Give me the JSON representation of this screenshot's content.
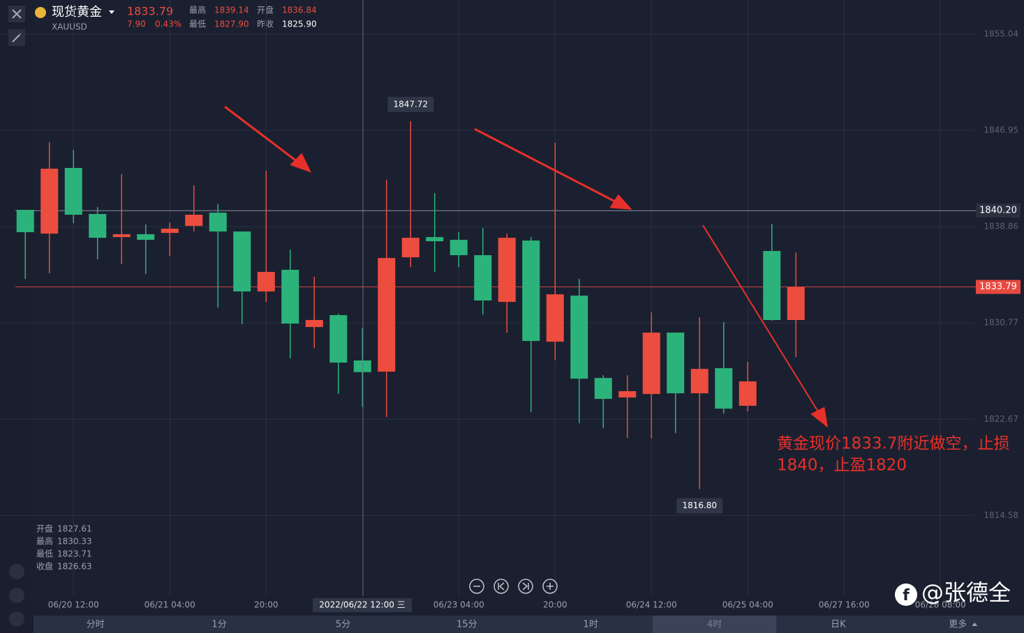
{
  "header": {
    "name": "现货黄金",
    "symbol": "XAUUSD",
    "price": "1833.79",
    "change": "7.90",
    "change_pct": "0.43%",
    "stats": [
      {
        "label": "最高",
        "value": "1839.14"
      },
      {
        "label": "开盘",
        "value": "1836.84"
      },
      {
        "label": "最低",
        "value": "1827.90"
      },
      {
        "label": "昨收",
        "value": "1825.90"
      }
    ]
  },
  "hover_info": [
    {
      "label": "开盘",
      "value": "1827.61"
    },
    {
      "label": "最高",
      "value": "1830.33"
    },
    {
      "label": "最低",
      "value": "1823.71"
    },
    {
      "label": "收盘",
      "value": "1826.63"
    }
  ],
  "crosshair_label": "2022/06/22 12:00 三",
  "tabs": [
    "分时",
    "1分",
    "5分",
    "15分",
    "1时",
    "4时",
    "日K",
    "更多"
  ],
  "active_tab": "4时",
  "note": [
    "黄金现价1833.7附近做空，止损",
    "1840，止盈1820"
  ],
  "watermark": "@张德全",
  "chart_data": {
    "type": "candlestick",
    "categories": [
      null,
      null,
      "06/20 12:00",
      null,
      null,
      null,
      "06/21 04:00",
      null,
      null,
      null,
      "20:00",
      null,
      null,
      null,
      null,
      null,
      null,
      null,
      "06/23 04:00",
      null,
      null,
      null,
      "20:00",
      null,
      null,
      null,
      "06/24 12:00",
      null,
      null,
      null,
      "06/25 04:00",
      null,
      null,
      null,
      "06/27 16:00",
      null,
      null,
      null,
      "06/28 08:00",
      null
    ],
    "open": [
      1840.27,
      1838.27,
      1843.79,
      1839.92,
      1837.98,
      1838.22,
      1838.33,
      1838.92,
      1840.03,
      1838.45,
      1833.41,
      1835.23,
      1830.42,
      1831.42,
      1827.61,
      1826.67,
      1836.28,
      1837.98,
      1837.75,
      1836.46,
      1832.53,
      1837.69,
      1829.19,
      1833.06,
      1826.14,
      1824.5,
      1824.79,
      1829.95,
      1824.85,
      1826.96,
      1823.8,
      1836.81,
      1831.01,
      null,
      null,
      null,
      null,
      null,
      null,
      null
    ],
    "high": [
      1840.27,
      1845.95,
      1845.31,
      1840.5,
      1843.26,
      1839.04,
      1839.21,
      1842.32,
      1840.74,
      1838.45,
      1843.55,
      1836.93,
      1834.64,
      1831.53,
      1830.33,
      1842.79,
      1847.72,
      1841.67,
      1838.39,
      1838.74,
      1838.27,
      1837.98,
      1845.9,
      1834.46,
      1826.37,
      1826.37,
      1831.65,
      1829.95,
      1831.24,
      1830.83,
      1827.49,
      1839.1,
      1836.69,
      null,
      null,
      null,
      null,
      null,
      null,
      null
    ],
    "low": [
      1834.46,
      1834.93,
      1839.15,
      1836.11,
      1835.7,
      1834.87,
      1836.4,
      1838.45,
      1832.06,
      1830.65,
      1832.53,
      1827.78,
      1828.66,
      1824.79,
      1823.71,
      1822.86,
      1835.46,
      1835.05,
      1835.46,
      1831.47,
      1829.95,
      1823.27,
      1827.66,
      1822.33,
      1821.92,
      1821.1,
      1821.04,
      1821.51,
      1816.8,
      1823.15,
      1823.33,
      1830.95,
      1827.9,
      null,
      null,
      null,
      null,
      null,
      null,
      null
    ],
    "close": [
      1838.39,
      1843.73,
      1839.86,
      1837.92,
      1838.22,
      1837.75,
      1838.69,
      1839.86,
      1838.45,
      1833.41,
      1835.05,
      1830.71,
      1831.01,
      1827.43,
      1826.63,
      1836.22,
      1837.92,
      1837.63,
      1836.46,
      1832.65,
      1837.92,
      1829.25,
      1833.17,
      1826.08,
      1824.38,
      1825.03,
      1829.95,
      1824.85,
      1826.9,
      1823.56,
      1825.85,
      1831.01,
      1833.79,
      null,
      null,
      null,
      null,
      null,
      null,
      null
    ],
    "up_color": "#ec4d3f",
    "down_color": "#2bb37b",
    "ylim": [
      1808.1,
      1856.15
    ],
    "yticks": [
      1814.58,
      1822.67,
      1830.77,
      1838.86,
      1846.95,
      1855.04
    ],
    "grid": true,
    "price_lines": [
      {
        "value": 1840.2,
        "label": "1840.20",
        "color": "#9aa0ad"
      },
      {
        "value": 1833.79,
        "label": "1833.79",
        "color": "#e8493f"
      }
    ],
    "annotations": [
      {
        "value": 1847.72,
        "label": "1847.72"
      },
      {
        "value": 1816.8,
        "label": "1816.80"
      }
    ]
  }
}
